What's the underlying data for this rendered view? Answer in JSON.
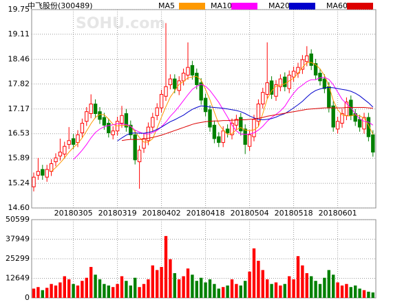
{
  "chart_data": {
    "type": "candlestick",
    "title": "中飞股份(300489)",
    "watermark": "SOHU.com",
    "categories": [
      null,
      null,
      null,
      null,
      null,
      null,
      null,
      null,
      null,
      "20180305",
      null,
      null,
      null,
      null,
      null,
      null,
      null,
      null,
      null,
      "20180319",
      null,
      null,
      null,
      null,
      null,
      null,
      null,
      null,
      null,
      "20180402",
      null,
      null,
      null,
      null,
      null,
      null,
      null,
      null,
      null,
      "20180418",
      null,
      null,
      null,
      null,
      null,
      null,
      null,
      null,
      null,
      "20180504",
      null,
      null,
      null,
      null,
      null,
      null,
      null,
      null,
      null,
      "20180518",
      null,
      null,
      null,
      null,
      null,
      null,
      null,
      null,
      null,
      "20180601",
      null,
      null,
      null,
      null,
      null,
      null,
      null,
      null
    ],
    "open": [
      15.15,
      15.45,
      15.6,
      15.4,
      15.55,
      15.8,
      15.95,
      16.0,
      16.25,
      16.4,
      16.3,
      16.55,
      16.85,
      17.05,
      17.3,
      17.1,
      16.95,
      16.8,
      16.5,
      16.6,
      16.8,
      17.05,
      16.75,
      16.5,
      15.8,
      16.15,
      16.35,
      16.7,
      17.0,
      17.2,
      17.5,
      17.8,
      17.95,
      17.65,
      17.9,
      18.05,
      18.3,
      18.1,
      17.85,
      17.45,
      17.15,
      16.75,
      16.45,
      16.3,
      16.65,
      16.5,
      16.75,
      16.95,
      16.65,
      16.2,
      16.45,
      16.85,
      17.3,
      17.55,
      17.9,
      17.5,
      17.75,
      18.0,
      17.7,
      18.0,
      18.1,
      18.2,
      18.4,
      18.6,
      18.35,
      18.1,
      17.95,
      17.75,
      17.25,
      16.65,
      16.8,
      17.0,
      17.4,
      17.05,
      16.9,
      16.65,
      16.95,
      16.5
    ],
    "high": [
      15.52,
      15.9,
      15.72,
      15.72,
      15.87,
      16.02,
      16.4,
      16.32,
      16.7,
      16.52,
      16.62,
      16.92,
      17.22,
      17.55,
      17.42,
      17.22,
      17.07,
      16.92,
      16.72,
      16.97,
      17.25,
      17.17,
      16.87,
      16.62,
      16.22,
      16.52,
      16.82,
      17.07,
      17.32,
      17.67,
      19.4,
      18.07,
      18.07,
      18.02,
      18.22,
      18.9,
      18.42,
      18.22,
      17.97,
      17.57,
      17.27,
      16.87,
      16.57,
      16.72,
      16.77,
      16.92,
      17.02,
      17.07,
      16.77,
      16.62,
      17.02,
      17.42,
      17.72,
      18.9,
      18.02,
      17.92,
      18.07,
      18.12,
      18.17,
      18.27,
      18.37,
      18.57,
      18.8,
      18.72,
      18.47,
      18.22,
      18.07,
      17.87,
      17.37,
      16.97,
      17.17,
      17.47,
      17.52,
      17.17,
      17.02,
      17.07,
      17.07,
      16.62
    ],
    "low": [
      15.03,
      15.33,
      15.33,
      15.28,
      15.43,
      15.68,
      15.83,
      15.88,
      16.13,
      16.13,
      16.18,
      16.43,
      16.73,
      16.93,
      16.93,
      16.78,
      16.63,
      16.43,
      16.38,
      16.48,
      16.68,
      16.58,
      16.38,
      15.73,
      15.1,
      16.03,
      16.23,
      16.58,
      16.88,
      17.08,
      17.38,
      17.68,
      17.58,
      17.53,
      17.78,
      17.93,
      17.93,
      17.68,
      17.28,
      16.98,
      16.58,
      16.28,
      16.18,
      16.18,
      16.43,
      16.38,
      16.63,
      16.48,
      16.0,
      16.08,
      16.33,
      16.73,
      17.18,
      17.43,
      17.43,
      17.38,
      17.63,
      17.63,
      17.58,
      17.88,
      17.98,
      18.08,
      18.28,
      18.18,
      17.93,
      17.78,
      17.58,
      17.08,
      16.58,
      16.53,
      16.68,
      16.88,
      16.88,
      16.73,
      16.58,
      16.53,
      16.33,
      15.93
    ],
    "close": [
      15.4,
      15.55,
      15.45,
      15.6,
      15.75,
      15.9,
      16.05,
      16.2,
      16.35,
      16.25,
      16.5,
      16.8,
      17.1,
      17.3,
      17.05,
      16.9,
      16.75,
      16.55,
      16.6,
      16.85,
      17.0,
      16.7,
      16.5,
      15.85,
      16.1,
      16.4,
      16.7,
      16.95,
      17.2,
      17.55,
      17.75,
      17.95,
      17.7,
      17.9,
      18.1,
      18.25,
      18.05,
      17.8,
      17.4,
      17.1,
      16.7,
      16.4,
      16.3,
      16.6,
      16.55,
      16.8,
      16.9,
      16.6,
      16.25,
      16.5,
      16.9,
      17.3,
      17.6,
      17.85,
      17.55,
      17.8,
      17.95,
      17.75,
      18.05,
      18.15,
      18.25,
      18.45,
      18.55,
      18.3,
      18.05,
      17.9,
      17.7,
      17.2,
      16.7,
      16.85,
      17.05,
      17.35,
      17.0,
      16.85,
      16.7,
      16.95,
      16.45,
      16.05
    ],
    "up_color": "#ff0000",
    "down_color": "#008000",
    "ylim": [
      14.6,
      19.75
    ],
    "yticks": [
      {
        "value": 14.6,
        "label": "14.60"
      },
      15.24,
      15.89,
      16.53,
      17.17,
      17.82,
      18.46,
      19.11,
      19.75
    ],
    "grid": true,
    "series": [
      {
        "name": "MA5",
        "color": "#ff9900",
        "values": [
          null,
          null,
          null,
          null,
          15.55,
          15.65,
          15.77,
          15.9,
          16.05,
          16.17,
          16.27,
          16.42,
          16.6,
          16.79,
          16.95,
          17.03,
          17.02,
          16.91,
          16.77,
          16.73,
          16.75,
          16.74,
          16.73,
          16.58,
          16.43,
          16.31,
          16.31,
          16.4,
          16.67,
          16.96,
          17.23,
          17.48,
          17.64,
          17.81,
          17.88,
          17.98,
          18.0,
          18.02,
          17.92,
          17.68,
          17.41,
          17.09,
          16.78,
          16.62,
          16.51,
          16.53,
          16.63,
          16.69,
          16.62,
          16.61,
          16.63,
          16.71,
          17.05,
          17.43,
          17.64,
          17.76,
          17.79,
          17.82,
          17.9,
          17.97,
          18.1,
          18.25,
          18.37,
          18.38,
          18.32,
          18.21,
          18.04,
          17.77,
          17.39,
          17.15,
          17.02,
          16.99,
          16.99,
          17.02,
          16.99,
          16.93,
          16.75,
          16.51
        ]
      },
      {
        "name": "MA10",
        "color": "#ff00ff",
        "values": [
          null,
          null,
          null,
          null,
          null,
          null,
          null,
          null,
          null,
          15.86,
          15.97,
          16.1,
          16.25,
          16.42,
          16.56,
          16.65,
          16.71,
          16.74,
          16.76,
          16.79,
          16.78,
          16.77,
          16.72,
          16.62,
          16.57,
          16.53,
          16.52,
          16.56,
          16.61,
          16.71,
          16.83,
          16.98,
          17.1,
          17.24,
          17.39,
          17.54,
          17.68,
          17.76,
          17.81,
          17.76,
          17.65,
          17.5,
          17.34,
          17.15,
          16.96,
          16.75,
          16.6,
          16.52,
          16.51,
          16.52,
          16.55,
          16.62,
          16.72,
          16.85,
          16.95,
          17.03,
          17.12,
          17.24,
          17.42,
          17.58,
          17.71,
          17.79,
          17.88,
          17.93,
          17.93,
          17.98,
          17.99,
          17.94,
          17.8,
          17.61,
          17.42,
          17.31,
          17.2,
          17.05,
          16.91,
          16.85,
          16.83,
          16.75
        ]
      },
      {
        "name": "MA20",
        "color": "#0000cc",
        "values": [
          null,
          null,
          null,
          null,
          null,
          null,
          null,
          null,
          null,
          null,
          null,
          null,
          null,
          null,
          null,
          null,
          null,
          null,
          null,
          16.34,
          16.42,
          16.49,
          16.54,
          16.55,
          16.54,
          16.54,
          16.56,
          16.59,
          16.64,
          16.7,
          16.77,
          16.84,
          16.89,
          16.95,
          17.01,
          17.09,
          17.16,
          17.21,
          17.25,
          17.24,
          17.22,
          17.21,
          17.2,
          17.19,
          17.17,
          17.15,
          17.13,
          17.1,
          17.05,
          16.99,
          16.94,
          16.9,
          16.89,
          16.9,
          16.92,
          16.96,
          17.01,
          17.05,
          17.12,
          17.2,
          17.28,
          17.37,
          17.48,
          17.58,
          17.65,
          17.69,
          17.72,
          17.73,
          17.72,
          17.7,
          17.68,
          17.66,
          17.63,
          17.58,
          17.51,
          17.42,
          17.33,
          17.22
        ]
      },
      {
        "name": "MA60",
        "color": "#dd0000",
        "values": [
          null,
          null,
          null,
          null,
          null,
          null,
          null,
          null,
          null,
          null,
          null,
          null,
          null,
          null,
          null,
          null,
          null,
          null,
          null,
          null,
          16.35,
          16.37,
          16.38,
          16.38,
          16.38,
          16.39,
          16.41,
          16.43,
          16.46,
          16.49,
          16.53,
          16.57,
          16.61,
          16.65,
          16.69,
          16.73,
          16.77,
          16.8,
          16.82,
          16.84,
          16.85,
          16.86,
          16.86,
          16.87,
          16.87,
          16.88,
          16.88,
          16.89,
          16.89,
          16.9,
          16.91,
          16.93,
          16.95,
          16.98,
          17.0,
          17.02,
          17.04,
          17.06,
          17.08,
          17.1,
          17.12,
          17.14,
          17.16,
          17.17,
          17.18,
          17.19,
          17.2,
          17.2,
          17.2,
          17.2,
          17.2,
          17.21,
          17.21,
          17.21,
          17.21,
          17.21,
          17.2,
          17.19
        ]
      }
    ],
    "volume": {
      "values": [
        6000,
        7000,
        5000,
        6500,
        9000,
        8000,
        10000,
        14000,
        12000,
        9000,
        8000,
        11000,
        13000,
        20000,
        15000,
        12000,
        9000,
        8000,
        7000,
        9000,
        14000,
        11000,
        8000,
        13000,
        7000,
        9000,
        12000,
        21000,
        18000,
        20000,
        40000,
        25000,
        16000,
        12000,
        14000,
        19000,
        15000,
        11000,
        13000,
        10000,
        12000,
        9000,
        6000,
        7000,
        8000,
        12000,
        9000,
        8000,
        11000,
        17000,
        32000,
        24000,
        18000,
        12000,
        9000,
        10000,
        8000,
        9000,
        14000,
        12000,
        27000,
        21000,
        16000,
        14000,
        11000,
        9000,
        13000,
        18000,
        15000,
        10000,
        8000,
        9000,
        7000,
        8000,
        6000,
        5000,
        4000,
        3500
      ],
      "ylim": [
        0,
        50599
      ],
      "yticks": [
        0,
        12649,
        25299,
        37949,
        50599
      ]
    }
  }
}
